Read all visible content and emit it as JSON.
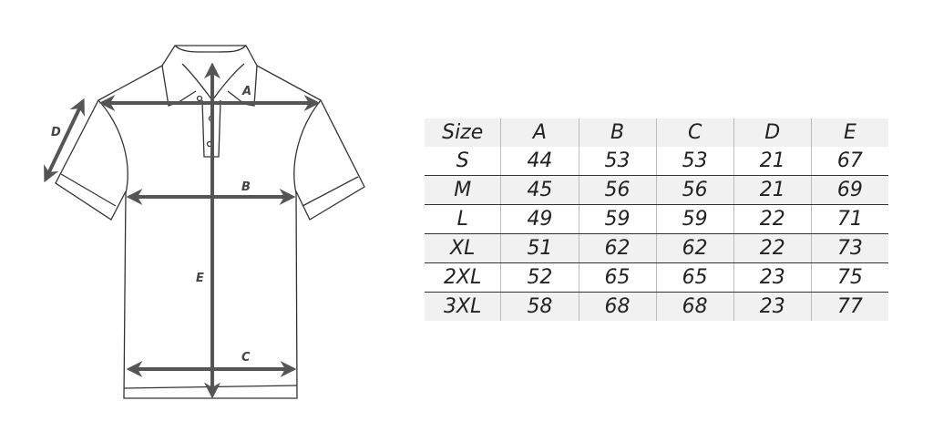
{
  "diagram": {
    "labels": {
      "A": "A",
      "B": "B",
      "C": "C",
      "D": "D",
      "E": "E"
    },
    "line_color": "#333333",
    "arrow_color": "#555555"
  },
  "size_table": {
    "headers": [
      "Size",
      "A",
      "B",
      "C",
      "D",
      "E"
    ],
    "rows": [
      [
        "S",
        "44",
        "53",
        "53",
        "21",
        "67"
      ],
      [
        "M",
        "45",
        "56",
        "56",
        "21",
        "69"
      ],
      [
        "L",
        "49",
        "59",
        "59",
        "22",
        "71"
      ],
      [
        "XL",
        "51",
        "62",
        "62",
        "22",
        "73"
      ],
      [
        "2XL",
        "52",
        "65",
        "65",
        "23",
        "75"
      ],
      [
        "3XL",
        "58",
        "68",
        "68",
        "23",
        "77"
      ]
    ],
    "stripe_color": "#f1f1f1"
  }
}
